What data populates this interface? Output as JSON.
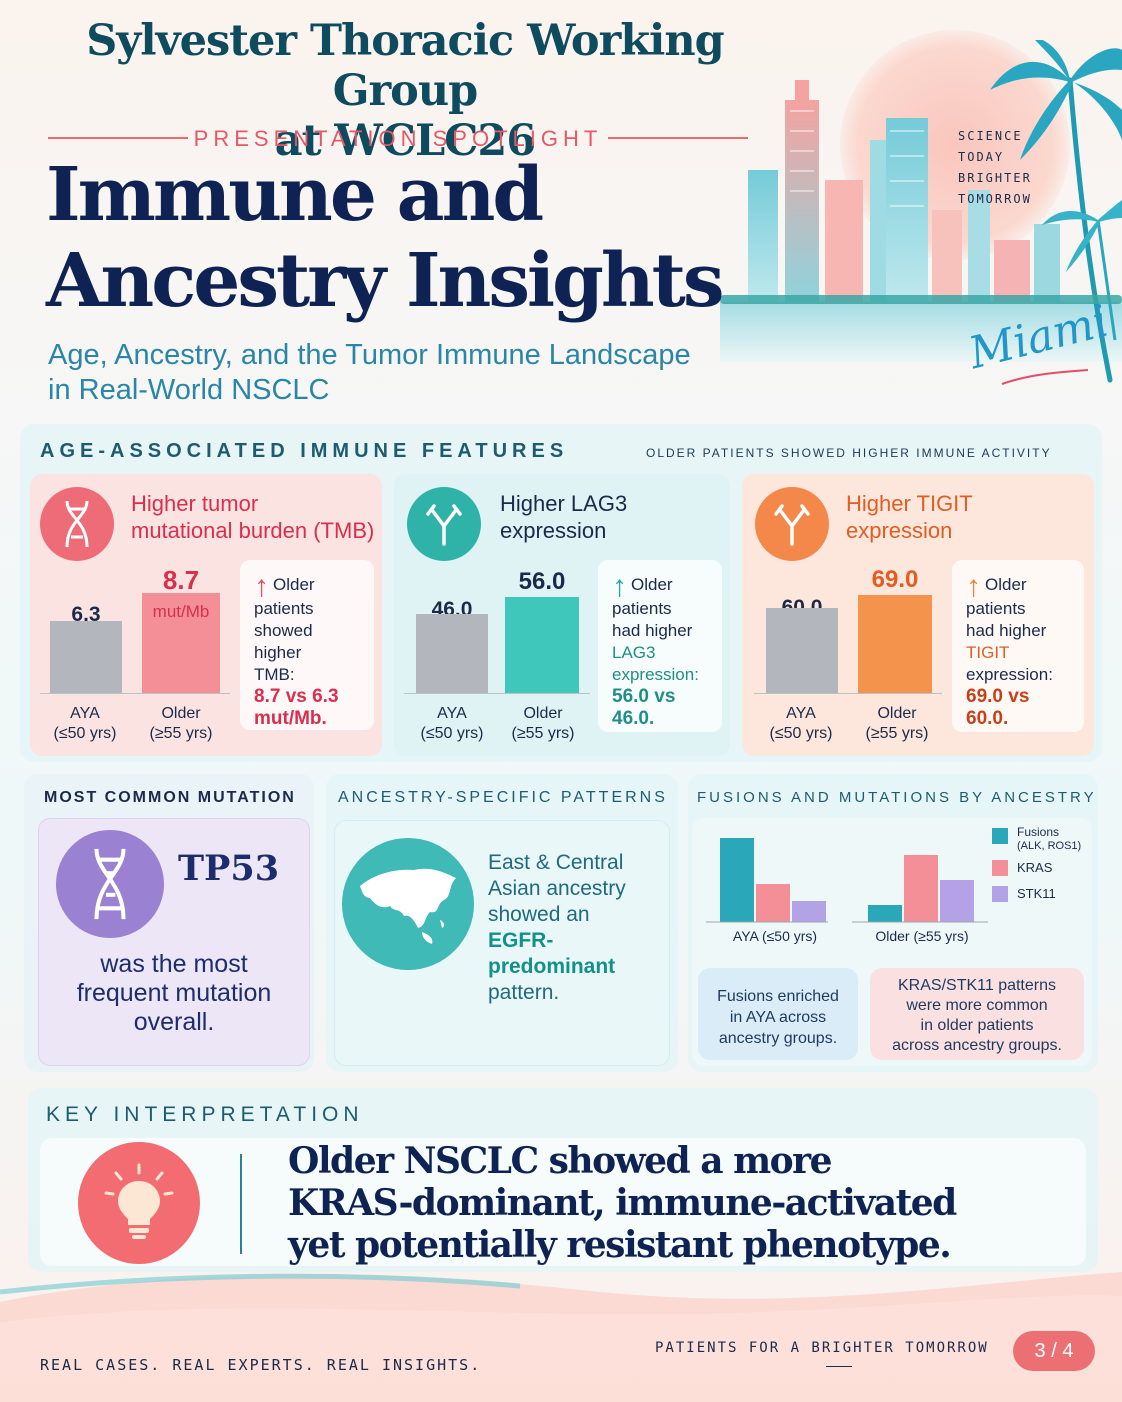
{
  "header": {
    "title_line1": "Sylvester Thoracic Working Group",
    "title_line2": "at WCLC26",
    "spotlight": "PRESENTATION SPOTLIGHT",
    "hero_line1": "Immune and",
    "hero_line2": "Ancestry Insights",
    "subtitle_line1": "Age, Ancestry, and the Tumor Immune Landscape",
    "subtitle_line2": "in Real-World NSCLC",
    "tagline": [
      "SCIENCE",
      "TODAY",
      "BRIGHTER",
      "TOMORROW"
    ],
    "city": "Miami"
  },
  "age_section": {
    "label": "AGE-ASSOCIATED IMMUNE FEATURES",
    "sublabel": "OLDER PATIENTS SHOWED HIGHER IMMUNE ACTIVITY",
    "cards": [
      {
        "title_line1": "Higher tumor",
        "title_line2": "mutational burden (TMB)",
        "icon": "dna-icon",
        "accent": "#e84d63",
        "bars": [
          {
            "category": "AYA",
            "range": "(≤50 yrs)",
            "value_label": "6.3",
            "value": 6.3
          },
          {
            "category": "Older",
            "range": "(≥55 yrs)",
            "value_label": "8.7",
            "value": 8.7,
            "unit": "mut/Mb"
          }
        ],
        "note_lines": [
          "Older",
          "patients",
          "showed higher",
          "TMB:"
        ],
        "note_highlight": [
          "8.7 vs 6.3",
          "mut/Mb."
        ]
      },
      {
        "title_line1": "Higher LAG3",
        "title_line2": "expression",
        "icon": "antibody-icon",
        "accent": "#22a89e",
        "bars": [
          {
            "category": "AYA",
            "range": "(≤50 yrs)",
            "value_label": "46.0",
            "value": 46.0
          },
          {
            "category": "Older",
            "range": "(≥55 yrs)",
            "value_label": "56.0",
            "value": 56.0
          }
        ],
        "note_lines": [
          "Older",
          "patients",
          "had higher",
          "LAG3",
          "expression:"
        ],
        "note_highlight": [
          "56.0 vs 46.0."
        ]
      },
      {
        "title_line1": "Higher TIGIT",
        "title_line2": "expression",
        "icon": "antibody-icon",
        "accent": "#f0813f",
        "bars": [
          {
            "category": "AYA",
            "range": "(≤50 yrs)",
            "value_label": "60.0",
            "value": 60.0
          },
          {
            "category": "Older",
            "range": "(≥55 yrs)",
            "value_label": "69.0",
            "value": 69.0
          }
        ],
        "note_lines": [
          "Older",
          "patients",
          "had higher",
          "TIGIT",
          "expression:"
        ],
        "note_highlight": [
          "69.0 vs 60.0."
        ]
      }
    ]
  },
  "mutation": {
    "label": "MOST COMMON MUTATION",
    "gene": "TP53",
    "text_lines": [
      "was the most",
      "frequent mutation",
      "overall."
    ]
  },
  "ancestry": {
    "label": "ANCESTRY-SPECIFIC PATTERNS",
    "text_lines": [
      "East & Central",
      "Asian ancestry",
      "showed an"
    ],
    "highlight": "EGFR-predominant",
    "text_end": "pattern."
  },
  "fusions": {
    "label": "FUSIONS AND MUTATIONS BY ANCESTRY",
    "legend": [
      {
        "name": "Fusions",
        "detail": "(ALK, ROS1)",
        "color": "#2aa7b8"
      },
      {
        "name": "KRAS",
        "detail": "",
        "color": "#f58f97"
      },
      {
        "name": "STK11",
        "detail": "",
        "color": "#b3a2e6"
      }
    ],
    "note_left": [
      "Fusions enriched",
      "in AYA across",
      "ancestry groups."
    ],
    "note_right": [
      "KRAS/STK11 patterns",
      "were more common",
      "in older patients",
      "across ancestry groups."
    ]
  },
  "chart_data": {
    "type": "bar",
    "categories": [
      "AYA (≤50 yrs)",
      "Older (≥55 yrs)"
    ],
    "series": [
      {
        "name": "Fusions (ALK, ROS1)",
        "values": [
          1.0,
          0.2
        ]
      },
      {
        "name": "KRAS",
        "values": [
          0.45,
          0.8
        ]
      },
      {
        "name": "STK11",
        "values": [
          0.25,
          0.5
        ]
      }
    ],
    "ylim": [
      0,
      1
    ],
    "legend": "top-right",
    "grid": false
  },
  "key": {
    "label": "KEY INTERPRETATION",
    "lines": [
      "Older NSCLC showed a more",
      "KRAS-dominant, immune-activated",
      "yet potentially resistant phenotype."
    ]
  },
  "footer": {
    "left": "REAL CASES. REAL EXPERTS. REAL INSIGHTS.",
    "right": "PATIENTS FOR A BRIGHTER TOMORROW",
    "page": "3 / 4"
  }
}
